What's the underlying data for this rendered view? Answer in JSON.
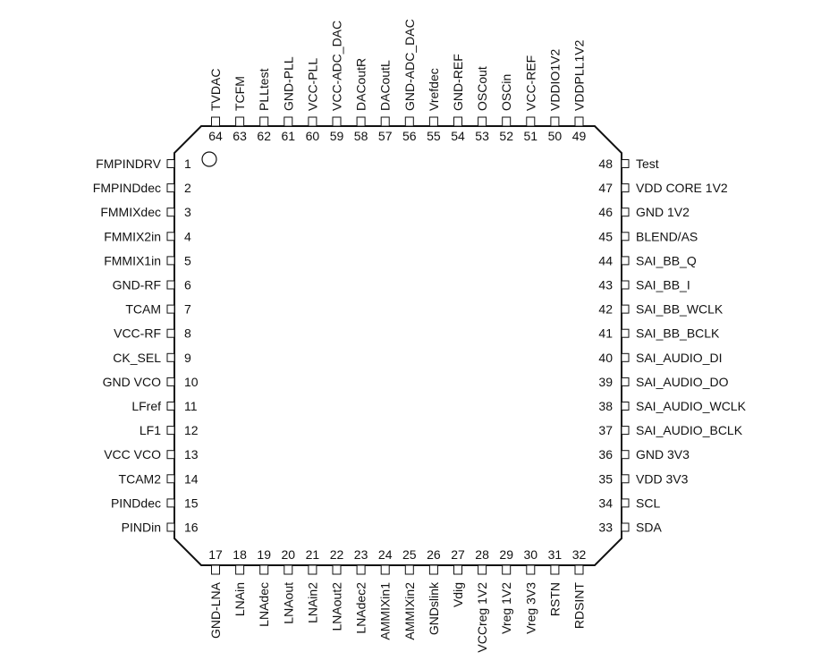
{
  "pins": {
    "left": [
      {
        "num": "1",
        "name": "FMPINDRV"
      },
      {
        "num": "2",
        "name": "FMPINDdec"
      },
      {
        "num": "3",
        "name": "FMMIXdec"
      },
      {
        "num": "4",
        "name": "FMMIX2in"
      },
      {
        "num": "5",
        "name": "FMMIX1in"
      },
      {
        "num": "6",
        "name": "GND-RF"
      },
      {
        "num": "7",
        "name": "TCAM"
      },
      {
        "num": "8",
        "name": "VCC-RF"
      },
      {
        "num": "9",
        "name": "CK_SEL"
      },
      {
        "num": "10",
        "name": "GND VCO"
      },
      {
        "num": "11",
        "name": "LFref"
      },
      {
        "num": "12",
        "name": "LF1"
      },
      {
        "num": "13",
        "name": "VCC VCO"
      },
      {
        "num": "14",
        "name": "TCAM2"
      },
      {
        "num": "15",
        "name": "PINDdec"
      },
      {
        "num": "16",
        "name": "PINDin"
      }
    ],
    "bottom": [
      {
        "num": "17",
        "name": "GND-LNA"
      },
      {
        "num": "18",
        "name": "LNAin"
      },
      {
        "num": "19",
        "name": "LNAdec"
      },
      {
        "num": "20",
        "name": "LNAout"
      },
      {
        "num": "21",
        "name": "LNAin2"
      },
      {
        "num": "22",
        "name": "LNAout2"
      },
      {
        "num": "23",
        "name": "LNAdec2"
      },
      {
        "num": "24",
        "name": "AMMIXin1"
      },
      {
        "num": "25",
        "name": "AMMIXin2"
      },
      {
        "num": "26",
        "name": "GNDslink"
      },
      {
        "num": "27",
        "name": "Vdig"
      },
      {
        "num": "28",
        "name": "VCCreg 1V2"
      },
      {
        "num": "29",
        "name": "Vreg 1V2"
      },
      {
        "num": "30",
        "name": "Vreg 3V3"
      },
      {
        "num": "31",
        "name": "RSTN"
      },
      {
        "num": "32",
        "name": "RDSINT"
      }
    ],
    "right": [
      {
        "num": "48",
        "name": "Test"
      },
      {
        "num": "47",
        "name": "VDD CORE 1V2"
      },
      {
        "num": "46",
        "name": "GND 1V2"
      },
      {
        "num": "45",
        "name": "BLEND/AS"
      },
      {
        "num": "44",
        "name": "SAI_BB_Q"
      },
      {
        "num": "43",
        "name": "SAI_BB_I"
      },
      {
        "num": "42",
        "name": "SAI_BB_WCLK"
      },
      {
        "num": "41",
        "name": "SAI_BB_BCLK"
      },
      {
        "num": "40",
        "name": "SAI_AUDIO_DI"
      },
      {
        "num": "39",
        "name": "SAI_AUDIO_DO"
      },
      {
        "num": "38",
        "name": "SAI_AUDIO_WCLK"
      },
      {
        "num": "37",
        "name": "SAI_AUDIO_BCLK"
      },
      {
        "num": "36",
        "name": "GND 3V3"
      },
      {
        "num": "35",
        "name": "VDD 3V3"
      },
      {
        "num": "34",
        "name": "SCL"
      },
      {
        "num": "33",
        "name": "SDA"
      }
    ],
    "top": [
      {
        "num": "64",
        "name": "TVDAC"
      },
      {
        "num": "63",
        "name": "TCFM"
      },
      {
        "num": "62",
        "name": "PLLtest"
      },
      {
        "num": "61",
        "name": "GND-PLL"
      },
      {
        "num": "60",
        "name": "VCC-PLL"
      },
      {
        "num": "59",
        "name": "VCC-ADC_DAC"
      },
      {
        "num": "58",
        "name": "DACoutR"
      },
      {
        "num": "57",
        "name": "DACoutL"
      },
      {
        "num": "56",
        "name": "GND-ADC_DAC"
      },
      {
        "num": "55",
        "name": "Vrefdec"
      },
      {
        "num": "54",
        "name": "GND-REF"
      },
      {
        "num": "53",
        "name": "OSCout"
      },
      {
        "num": "52",
        "name": "OSCin"
      },
      {
        "num": "51",
        "name": "VCC-REF"
      },
      {
        "num": "50",
        "name": "VDDIO1V2"
      },
      {
        "num": "49",
        "name": "VDDPLL1V2"
      }
    ]
  },
  "colors": {
    "line": "#111111",
    "background": "#ffffff"
  }
}
